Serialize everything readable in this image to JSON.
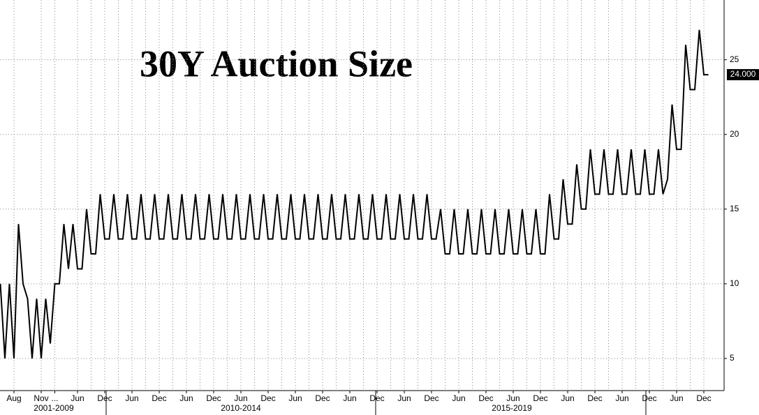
{
  "chart_data": {
    "type": "line",
    "title": "30Y Auction Size",
    "categories": [
      null,
      null,
      null,
      "Aug",
      null,
      null,
      null,
      null,
      null,
      "Nov",
      null,
      null,
      "...",
      null,
      null,
      null,
      null,
      "Jun",
      null,
      null,
      null,
      null,
      null,
      "Dec",
      null,
      null,
      null,
      null,
      null,
      "Jun",
      null,
      null,
      null,
      null,
      null,
      "Dec",
      null,
      null,
      null,
      null,
      null,
      "Jun",
      null,
      null,
      null,
      null,
      null,
      "Dec",
      null,
      null,
      null,
      null,
      null,
      "Jun",
      null,
      null,
      null,
      null,
      null,
      "Dec",
      null,
      null,
      null,
      null,
      null,
      "Jun",
      null,
      null,
      null,
      null,
      null,
      "Dec",
      null,
      null,
      null,
      null,
      null,
      "Jun",
      null,
      null,
      null,
      null,
      null,
      "Dec",
      null,
      null,
      null,
      null,
      null,
      "Jun",
      null,
      null,
      null,
      null,
      null,
      "Dec",
      null,
      null,
      null,
      null,
      null,
      "Jun",
      null,
      null,
      null,
      null,
      null,
      "Dec",
      null,
      null,
      null,
      null,
      null,
      "Jun",
      null,
      null,
      null,
      null,
      null,
      "Dec",
      null,
      null,
      null,
      null,
      null,
      "Jun",
      null,
      null,
      null,
      null,
      null,
      "Dec",
      null,
      null,
      null,
      null,
      null,
      "Jun",
      null,
      null,
      null,
      null,
      null,
      "Dec",
      null,
      null,
      null,
      null,
      null,
      "Jun",
      null,
      null,
      null,
      null,
      null,
      "Dec",
      null
    ],
    "values": [
      10,
      5,
      10,
      5,
      14,
      10,
      9,
      5,
      9,
      5,
      9,
      6,
      10,
      10,
      14,
      11,
      14,
      11,
      11,
      15,
      12,
      12,
      16,
      13,
      13,
      16,
      13,
      13,
      16,
      13,
      13,
      16,
      13,
      13,
      16,
      13,
      13,
      16,
      13,
      13,
      16,
      13,
      13,
      16,
      13,
      13,
      16,
      13,
      13,
      16,
      13,
      13,
      16,
      13,
      13,
      16,
      13,
      13,
      16,
      13,
      13,
      16,
      13,
      13,
      16,
      13,
      13,
      16,
      13,
      13,
      16,
      13,
      13,
      16,
      13,
      13,
      16,
      13,
      13,
      16,
      13,
      13,
      16,
      13,
      13,
      16,
      13,
      13,
      16,
      13,
      13,
      16,
      13,
      13,
      16,
      13,
      13,
      15,
      12,
      12,
      15,
      12,
      12,
      15,
      12,
      12,
      15,
      12,
      12,
      15,
      12,
      12,
      15,
      12,
      12,
      15,
      12,
      12,
      15,
      12,
      12,
      16,
      13,
      13,
      17,
      14,
      14,
      18,
      15,
      15,
      19,
      16,
      16,
      19,
      16,
      16,
      19,
      16,
      16,
      19,
      16,
      16,
      19,
      16,
      16,
      19,
      16,
      17,
      22,
      19,
      19,
      26,
      23,
      23,
      27,
      24,
      24
    ],
    "last_value_label": "24.000",
    "period_labels": [
      "2001-2009",
      "2010-2014",
      "2015-2019"
    ],
    "color": "#000000",
    "ylim": [
      2.85,
      29
    ],
    "yticks": [
      5,
      10,
      15,
      20,
      25
    ],
    "grid": true
  }
}
